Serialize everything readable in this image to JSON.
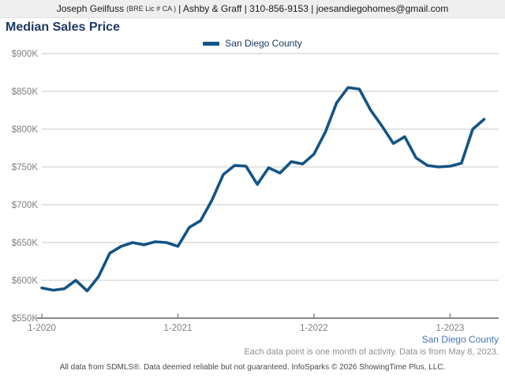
{
  "header": {
    "agent": "Joseph Geilfuss",
    "license": "(BRE Lic # CA )",
    "tail": "| Ashby & Graff | 310-856-9153 | joesandiegohomes@gmail.com"
  },
  "title": "Median Sales Price",
  "legend": {
    "label": "San Diego County"
  },
  "footer": {
    "series_label": "San Diego County",
    "note": "Each data point is one month of activity. Data is from May 8, 2023.",
    "disclaimer": "All data from SDMLS®. Data deemed reliable but not guaranteed. InfoSparks © 2026 ShowingTime Plus, LLC."
  },
  "colors": {
    "line": "#135485",
    "title": "#1f3864",
    "legend_text": "#17375d",
    "axis_label": "#7f7f7f",
    "gridline": "#c9c9c9",
    "axis_line": "#888888",
    "footer_series": "#4576b8",
    "header_bg": "#efefef"
  },
  "chart_data": {
    "type": "line",
    "title": "Median Sales Price",
    "unit": "USD thousands",
    "x": [
      "1-2020",
      "2-2020",
      "3-2020",
      "4-2020",
      "5-2020",
      "6-2020",
      "7-2020",
      "8-2020",
      "9-2020",
      "10-2020",
      "11-2020",
      "12-2020",
      "1-2021",
      "2-2021",
      "3-2021",
      "4-2021",
      "5-2021",
      "6-2021",
      "7-2021",
      "8-2021",
      "9-2021",
      "10-2021",
      "11-2021",
      "12-2021",
      "1-2022",
      "2-2022",
      "3-2022",
      "4-2022",
      "5-2022",
      "6-2022",
      "7-2022",
      "8-2022",
      "9-2022",
      "10-2022",
      "11-2022",
      "12-2022",
      "1-2023",
      "2-2023",
      "3-2023",
      "4-2023"
    ],
    "series": [
      {
        "name": "San Diego County",
        "values": [
          590,
          587,
          589,
          600,
          586,
          605,
          636,
          645,
          650,
          647,
          651,
          650,
          645,
          670,
          679,
          706,
          740,
          752,
          751,
          727,
          749,
          742,
          757,
          754,
          767,
          796,
          835,
          855,
          853,
          825,
          804,
          781,
          790,
          762,
          752,
          750,
          751,
          755,
          800,
          813
        ]
      }
    ],
    "ylim": [
      550,
      900
    ],
    "ytick_step": 50,
    "ytick_labels": [
      "$550K",
      "$600K",
      "$650K",
      "$700K",
      "$750K",
      "$800K",
      "$850K",
      "$900K"
    ],
    "xtick_labels": [
      "1-2020",
      "1-2021",
      "1-2022",
      "1-2023"
    ],
    "grid": "horizontal",
    "legend_position": "top-center"
  }
}
